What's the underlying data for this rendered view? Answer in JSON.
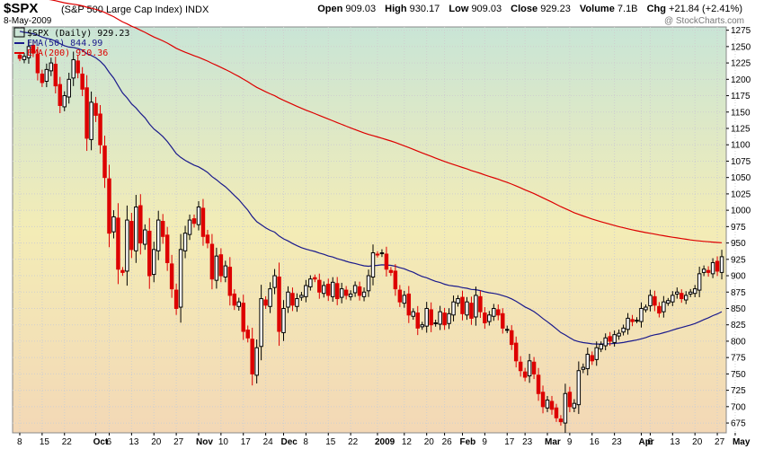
{
  "header": {
    "ticker": "$SPX",
    "name": "(S&P 500 Large Cap Index) INDX",
    "date": "8-May-2009",
    "open_label": "Open",
    "open": "909.03",
    "high_label": "High",
    "high": "930.17",
    "low_label": "Low",
    "low": "909.03",
    "close_label": "Close",
    "close": "929.23",
    "volume_label": "Volume",
    "volume": "7.1B",
    "chg_label": "Chg",
    "chg": "+21.84 (+2.41%)",
    "watermark": "@ StockCharts.com"
  },
  "legend": {
    "price": "$SPX (Daily) 929.23",
    "ema50": "EMA(50) 844.99",
    "ema200": "EMA(200) 950.36"
  },
  "colors": {
    "up": "#000000",
    "down": "#dd0000",
    "ema50": "#1a1a8c",
    "ema200": "#dd0000",
    "bg_top": "#c9e5d6",
    "bg_mid": "#f3ecb6",
    "bg_bottom": "#f3d8b6"
  },
  "chart_data": {
    "type": "candlestick",
    "ylim": [
      660,
      1280
    ],
    "yticks": [
      675,
      700,
      725,
      750,
      775,
      800,
      825,
      850,
      875,
      900,
      925,
      950,
      975,
      1000,
      1025,
      1050,
      1075,
      1100,
      1125,
      1150,
      1175,
      1200,
      1225,
      1250,
      1275
    ],
    "xticks": [
      {
        "label": "8",
        "i": 0
      },
      {
        "label": "15",
        "i": 5
      },
      {
        "label": "22",
        "i": 10
      },
      {
        "label": "Oct",
        "i": 17
      },
      {
        "label": "6",
        "i": 20
      },
      {
        "label": "13",
        "i": 25
      },
      {
        "label": "20",
        "i": 30
      },
      {
        "label": "27",
        "i": 35
      },
      {
        "label": "Nov",
        "i": 40
      },
      {
        "label": "10",
        "i": 45
      },
      {
        "label": "17",
        "i": 50
      },
      {
        "label": "24",
        "i": 55
      },
      {
        "label": "Dec",
        "i": 59
      },
      {
        "label": "8",
        "i": 64
      },
      {
        "label": "15",
        "i": 69
      },
      {
        "label": "22",
        "i": 74
      },
      {
        "label": "2009",
        "i": 80
      },
      {
        "label": "12",
        "i": 86
      },
      {
        "label": "20",
        "i": 91
      },
      {
        "label": "26",
        "i": 95
      },
      {
        "label": "Feb",
        "i": 99
      },
      {
        "label": "9",
        "i": 104
      },
      {
        "label": "17",
        "i": 109
      },
      {
        "label": "23",
        "i": 113
      },
      {
        "label": "Mar",
        "i": 118
      },
      {
        "label": "9",
        "i": 123
      },
      {
        "label": "16",
        "i": 128
      },
      {
        "label": "23",
        "i": 133
      },
      {
        "label": "Apr",
        "i": 139
      },
      {
        "label": "6",
        "i": 141
      },
      {
        "label": "13",
        "i": 146
      },
      {
        "label": "20",
        "i": 151
      },
      {
        "label": "27",
        "i": 156
      },
      {
        "label": "May",
        "i": 160
      }
    ],
    "closes": [
      1232,
      1235,
      1250,
      1240,
      1210,
      1195,
      1215,
      1225,
      1190,
      1160,
      1175,
      1200,
      1230,
      1210,
      1185,
      1110,
      1165,
      1145,
      1100,
      1050,
      965,
      990,
      910,
      905,
      985,
      940,
      1005,
      950,
      970,
      900,
      940,
      985,
      960,
      920,
      880,
      850,
      940,
      965,
      985,
      980,
      1005,
      960,
      950,
      895,
      930,
      900,
      915,
      870,
      855,
      860,
      815,
      805,
      750,
      790,
      865,
      855,
      880,
      900,
      815,
      850,
      875,
      855,
      865,
      870,
      885,
      895,
      895,
      875,
      885,
      870,
      890,
      865,
      880,
      870,
      872,
      885,
      870,
      875,
      900,
      935,
      932,
      935,
      910,
      905,
      880,
      860,
      870,
      840,
      845,
      820,
      825,
      850,
      825,
      828,
      845,
      825,
      842,
      860,
      865,
      842,
      860,
      835,
      870,
      845,
      828,
      840,
      850,
      840,
      820,
      818,
      795,
      770,
      755,
      745,
      770,
      750,
      720,
      700,
      710,
      696,
      683,
      677,
      720,
      700,
      705,
      755,
      760,
      780,
      770,
      790,
      795,
      805,
      800,
      810,
      812,
      820,
      835,
      830,
      832,
      850,
      852,
      870,
      855,
      843,
      860,
      862,
      870,
      875,
      865,
      870,
      875,
      880,
      903,
      910,
      905,
      920,
      907,
      929
    ],
    "ema50_final": 844.99,
    "ema200_final": 950.36
  }
}
